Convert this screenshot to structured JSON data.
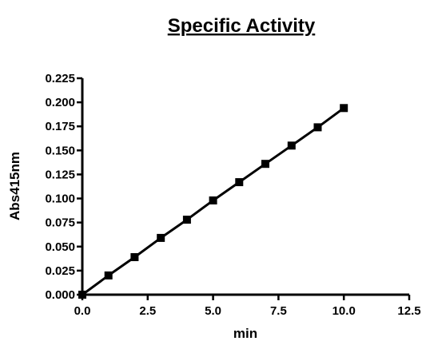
{
  "chart_data": {
    "type": "line",
    "title": "Specific Activity",
    "xlabel": "min",
    "ylabel": "Abs415nm",
    "xlim": [
      0,
      12.5
    ],
    "ylim": [
      0,
      0.225
    ],
    "x_ticks": [
      "0.0",
      "2.5",
      "5.0",
      "7.5",
      "10.0",
      "12.5"
    ],
    "y_ticks": [
      "0.000",
      "0.025",
      "0.050",
      "0.075",
      "0.100",
      "0.125",
      "0.150",
      "0.175",
      "0.200",
      "0.225"
    ],
    "grid": false,
    "marker": "square",
    "line_color": "#000000",
    "series": [
      {
        "x": [
          0,
          1,
          2,
          3,
          4,
          5,
          6,
          7,
          8,
          9,
          10
        ],
        "y": [
          0.0,
          0.02,
          0.039,
          0.059,
          0.078,
          0.098,
          0.117,
          0.136,
          0.155,
          0.174,
          0.194
        ]
      }
    ]
  }
}
